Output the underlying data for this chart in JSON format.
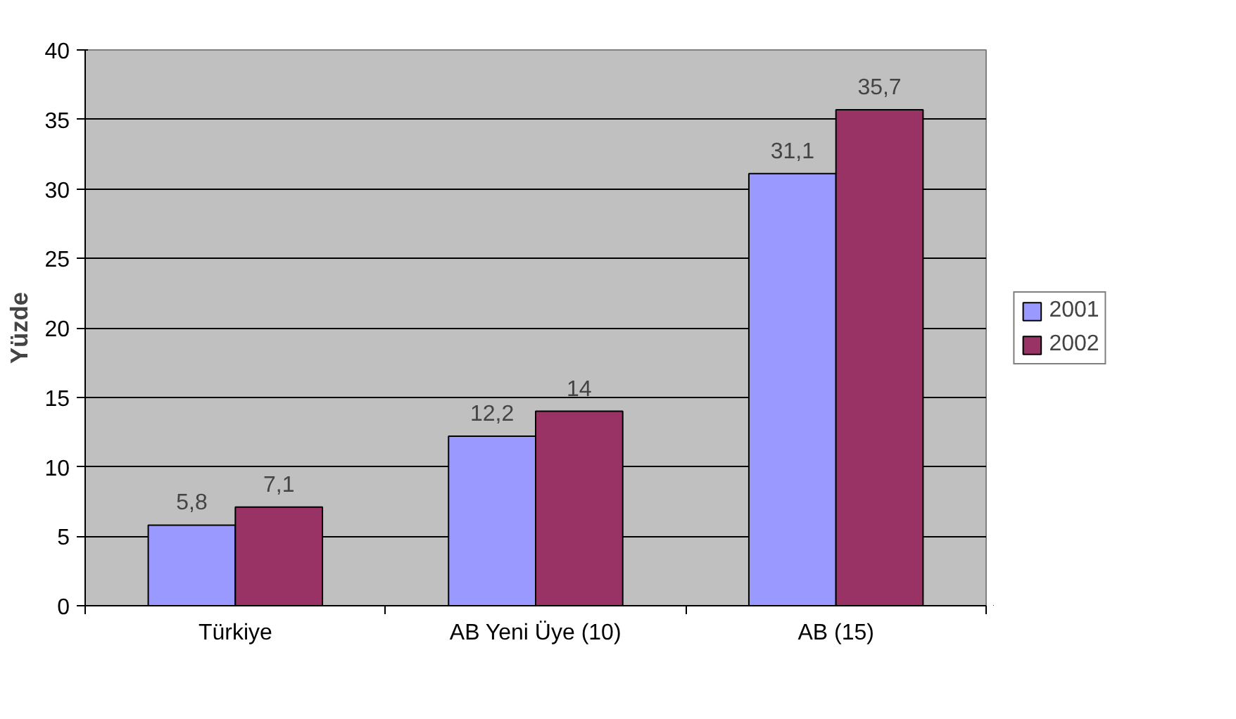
{
  "chart_data": {
    "type": "bar",
    "ylabel": "Yüzde",
    "categories": [
      "Türkiye",
      "AB Yeni Üye (10)",
      "AB (15)"
    ],
    "series": [
      {
        "name": "2001",
        "color": "#9999ff",
        "values": [
          5.8,
          12.2,
          31.1
        ],
        "value_labels": [
          "5,8",
          "12,2",
          "31,1"
        ]
      },
      {
        "name": "2002",
        "color": "#993366",
        "values": [
          7.1,
          14,
          35.7
        ],
        "value_labels": [
          "7,1",
          "14",
          "35,7"
        ]
      }
    ],
    "ylim": [
      0,
      40
    ],
    "yticks": [
      0,
      5,
      10,
      15,
      20,
      25,
      30,
      35,
      40
    ],
    "grid": "y",
    "legend": "right"
  }
}
